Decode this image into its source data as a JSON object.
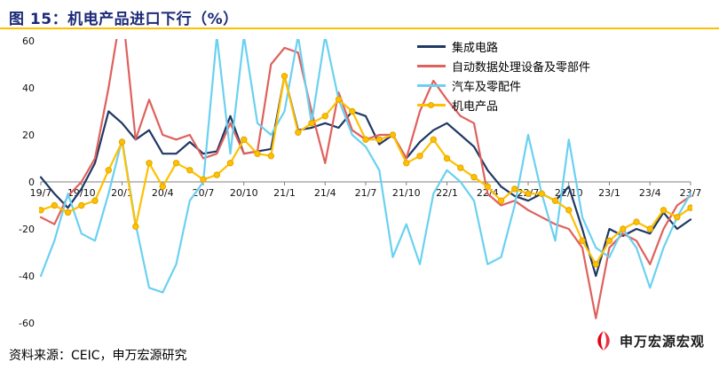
{
  "header": {
    "title": "图 15：机电产品进口下行（%）"
  },
  "footer": {
    "source": "资料来源：CEIC，申万宏源研究"
  },
  "watermark": {
    "text": "申万宏源宏观",
    "logo": "swhy-fan-logo"
  },
  "colors": {
    "title": "#1b2a78",
    "title_rule": "#ffc000",
    "axis": "#808080"
  },
  "chart_data": {
    "type": "line",
    "title": "图 15：机电产品进口下行（%）",
    "xlabel": "",
    "ylabel": "%",
    "ylim": [
      -60,
      60
    ],
    "yticks": [
      60,
      40,
      20,
      0,
      -20,
      -40,
      -60
    ],
    "grid": false,
    "legend_position": "top-right-inside",
    "x": [
      "19/7",
      "19/8",
      "19/9",
      "19/10",
      "19/11",
      "19/12",
      "20/1",
      "20/2",
      "20/3",
      "20/4",
      "20/5",
      "20/6",
      "20/7",
      "20/8",
      "20/9",
      "20/10",
      "20/11",
      "20/12",
      "21/1",
      "21/2",
      "21/3",
      "21/4",
      "21/5",
      "21/6",
      "21/7",
      "21/8",
      "21/9",
      "21/10",
      "21/11",
      "21/12",
      "22/1",
      "22/2",
      "22/3",
      "22/4",
      "22/5",
      "22/6",
      "22/7",
      "22/8",
      "22/9",
      "22/10",
      "22/11",
      "22/12",
      "23/1",
      "23/2",
      "23/3",
      "23/4",
      "23/5",
      "23/6",
      "23/7"
    ],
    "xticks": [
      "19/7",
      "19/10",
      "20/1",
      "20/4",
      "20/7",
      "20/10",
      "21/1",
      "21/4",
      "21/7",
      "21/10",
      "22/1",
      "22/4",
      "22/7",
      "22/10",
      "23/1",
      "23/4",
      "23/7"
    ],
    "series": [
      {
        "name": "集成电路",
        "color": "#1f3864",
        "marker": false,
        "values": [
          2,
          -5,
          -11,
          -3,
          8,
          30,
          25,
          18,
          22,
          12,
          12,
          17,
          12,
          13,
          28,
          12,
          13,
          14,
          45,
          22,
          23,
          25,
          23,
          30,
          28,
          16,
          20,
          10,
          17,
          22,
          25,
          20,
          15,
          5,
          -2,
          -6,
          -8,
          -5,
          -8,
          -2,
          -20,
          -40,
          -20,
          -23,
          -20,
          -22,
          -13,
          -20,
          -16
        ]
      },
      {
        "name": "自动数据处理设备及零部件",
        "color": "#e0605c",
        "marker": false,
        "values": [
          -15,
          -18,
          -6,
          0,
          10,
          40,
          75,
          18,
          35,
          20,
          18,
          20,
          10,
          12,
          25,
          12,
          13,
          50,
          57,
          55,
          30,
          8,
          38,
          22,
          18,
          20,
          20,
          10,
          30,
          43,
          35,
          28,
          25,
          -5,
          -10,
          -8,
          -12,
          -15,
          -18,
          -20,
          -28,
          -58,
          -28,
          -22,
          -25,
          -35,
          -20,
          -10,
          -6
        ]
      },
      {
        "name": "汽车及零配件",
        "color": "#6ad1f0",
        "marker": false,
        "values": [
          -40,
          -25,
          -5,
          -22,
          -25,
          -5,
          18,
          -18,
          -45,
          -47,
          -35,
          -8,
          0,
          62,
          12,
          62,
          25,
          20,
          30,
          62,
          25,
          62,
          35,
          20,
          15,
          5,
          -32,
          -18,
          -35,
          -5,
          5,
          0,
          -8,
          -35,
          -32,
          -10,
          20,
          -5,
          -25,
          18,
          -15,
          -28,
          -32,
          -20,
          -28,
          -45,
          -28,
          -15,
          -5
        ]
      },
      {
        "name": "机电产品",
        "color": "#ffc000",
        "marker": true,
        "marker_edge": "#e2a500",
        "values": [
          -12,
          -10,
          -13,
          -10,
          -8,
          5,
          17,
          -19,
          8,
          -2,
          8,
          5,
          1,
          3,
          8,
          18,
          12,
          11,
          45,
          21,
          25,
          28,
          35,
          30,
          18,
          18,
          20,
          8,
          11,
          18,
          10,
          6,
          2,
          -2,
          -8,
          -3,
          -5,
          -5,
          -8,
          -12,
          -25,
          -35,
          -25,
          -20,
          -17,
          -20,
          -12,
          -15,
          -11
        ]
      }
    ]
  }
}
